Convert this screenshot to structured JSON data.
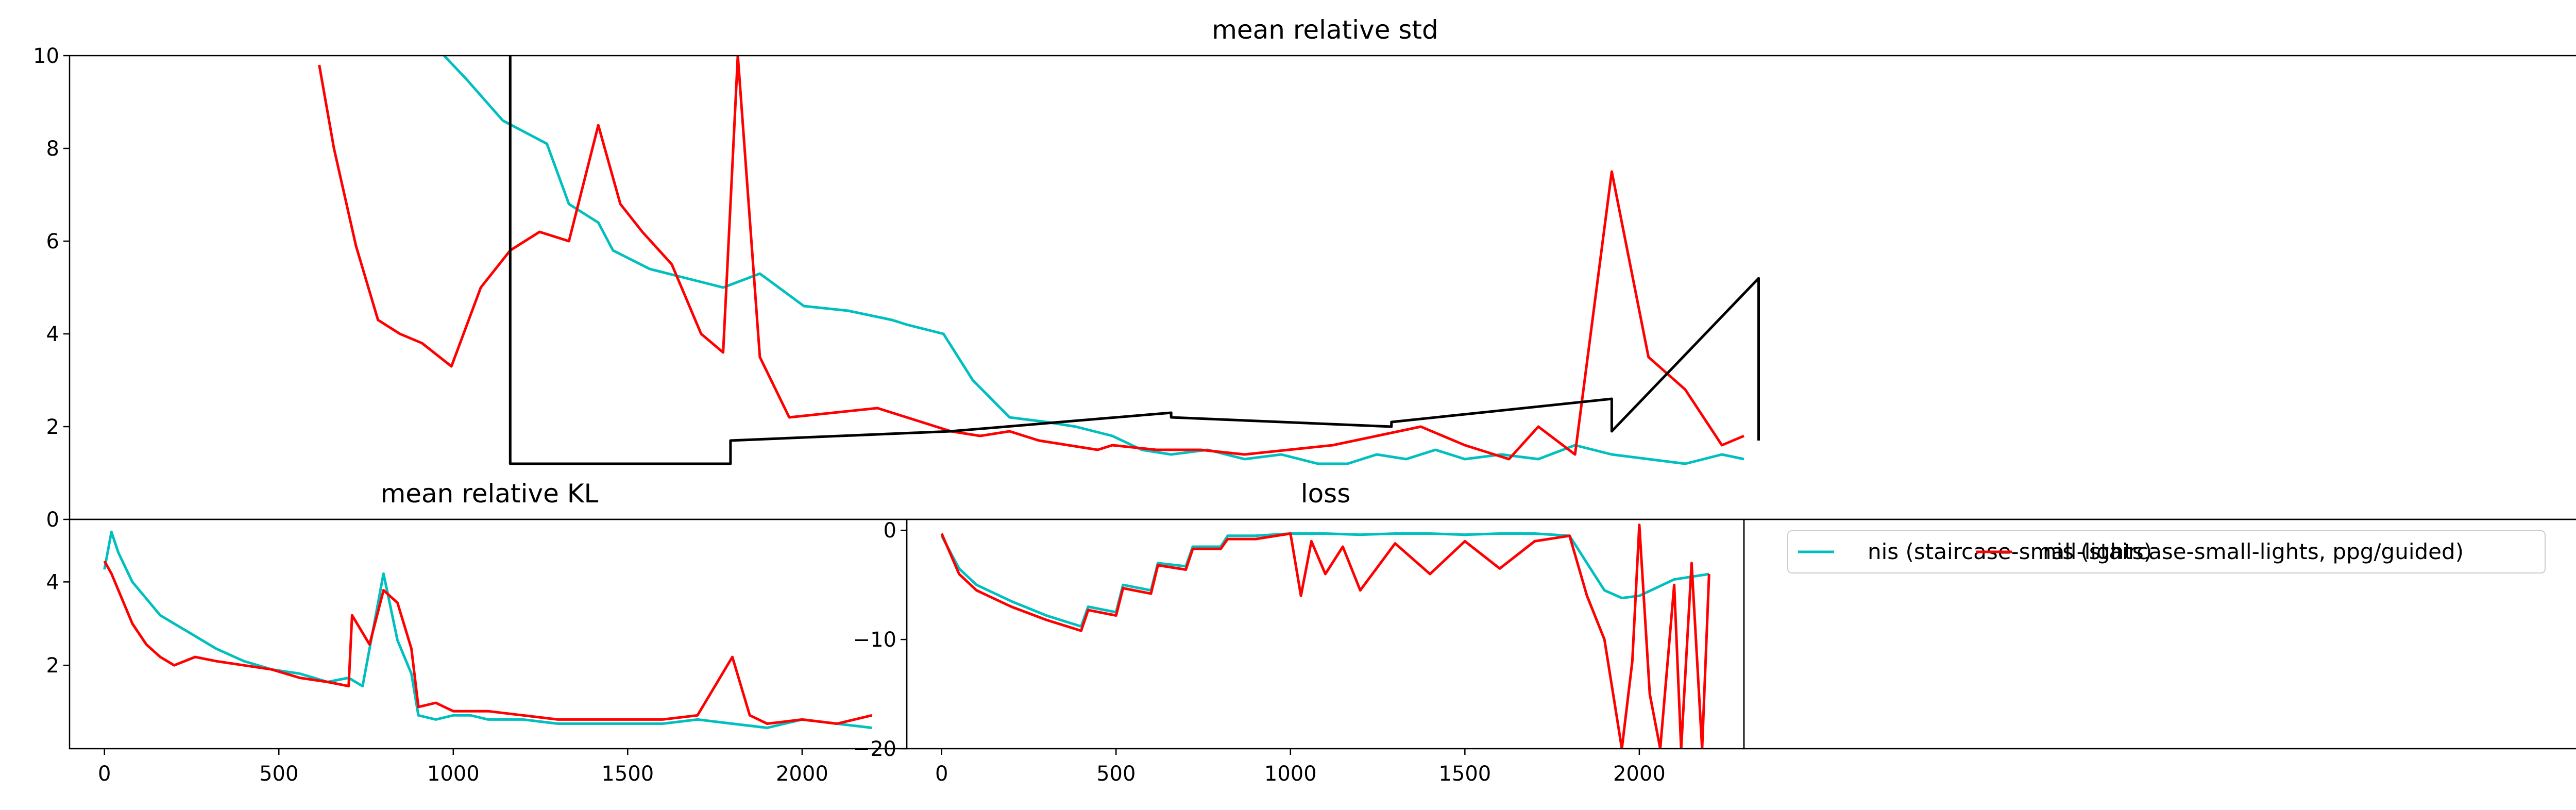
{
  "chart_data": [
    {
      "type": "line",
      "title": "mean relative std",
      "xlim": [
        -100,
        3320
      ],
      "ylim": [
        0,
        10
      ],
      "yticks": [
        0,
        2,
        4,
        6,
        8,
        10
      ],
      "xticks": [],
      "grid": false,
      "series": [
        {
          "color": "#00bfbf",
          "x": [
            410,
            440,
            490,
            550,
            580,
            620,
            640,
            690,
            740,
            790,
            840,
            900,
            960,
            1020,
            1040,
            1090,
            1130,
            1180,
            1230,
            1270,
            1320,
            1360,
            1400,
            1450,
            1500,
            1550,
            1600,
            1640,
            1680,
            1720,
            1760,
            1800,
            1850,
            1900,
            1950,
            2000,
            2050,
            2100,
            2150,
            2180
          ],
          "y": [
            10,
            9.5,
            8.6,
            8.1,
            6.8,
            6.4,
            5.8,
            5.4,
            5.2,
            5.0,
            5.3,
            4.6,
            4.5,
            4.3,
            4.2,
            4.0,
            3.0,
            2.2,
            2.1,
            2.0,
            1.8,
            1.5,
            1.4,
            1.5,
            1.3,
            1.4,
            1.2,
            1.2,
            1.4,
            1.3,
            1.5,
            1.3,
            1.4,
            1.3,
            1.6,
            1.4,
            1.3,
            1.2,
            1.4,
            1.3
          ]
        },
        {
          "color": "#ff0000",
          "x": [
            240,
            260,
            290,
            320,
            350,
            380,
            420,
            460,
            500,
            540,
            580,
            620,
            650,
            680,
            720,
            760,
            790,
            810,
            840,
            880,
            940,
            1000,
            1060,
            1100,
            1140,
            1180,
            1220,
            1260,
            1300,
            1320,
            1380,
            1440,
            1500,
            1560,
            1620,
            1680,
            1740,
            1800,
            1860,
            1900,
            1950,
            2000,
            2050,
            2100,
            2150,
            2180
          ],
          "y": [
            9.8,
            8.0,
            5.9,
            4.3,
            4.0,
            3.8,
            3.3,
            5.0,
            5.8,
            6.2,
            6.0,
            8.5,
            6.8,
            6.2,
            5.5,
            4.0,
            3.6,
            10,
            3.5,
            2.2,
            2.3,
            2.4,
            2.1,
            1.9,
            1.8,
            1.9,
            1.7,
            1.6,
            1.5,
            1.6,
            1.5,
            1.5,
            1.4,
            1.5,
            1.6,
            1.8,
            2.0,
            1.6,
            1.3,
            2.0,
            1.4,
            7.5,
            3.5,
            2.8,
            1.6,
            1.8
          ]
        },
        {
          "color": "#000000",
          "x": [
            500,
            500,
            800,
            800,
            1100,
            1100,
            1400,
            1400,
            1700,
            1700,
            2000,
            2000,
            2200,
            2200
          ],
          "y": [
            10,
            1.2,
            1.2,
            1.7,
            1.9,
            1.9,
            2.3,
            2.2,
            2.0,
            2.1,
            2.6,
            1.9,
            5.2,
            1.7
          ]
        }
      ]
    },
    {
      "type": "line",
      "title": "mean relative KL",
      "xlim": [
        -100,
        2300
      ],
      "ylim": [
        0,
        5.5
      ],
      "xticks": [
        0,
        500,
        1000,
        1500,
        2000
      ],
      "yticks": [
        2,
        4
      ],
      "grid": false,
      "series": [
        {
          "color": "#00bfbf",
          "x": [
            0,
            20,
            40,
            80,
            120,
            160,
            200,
            260,
            320,
            400,
            480,
            560,
            640,
            700,
            740,
            800,
            840,
            880,
            900,
            950,
            1000,
            1050,
            1100,
            1200,
            1300,
            1400,
            1500,
            1600,
            1700,
            1800,
            1900,
            2000,
            2100,
            2200
          ],
          "y": [
            4.3,
            5.2,
            4.7,
            4.0,
            3.6,
            3.2,
            3.0,
            2.7,
            2.4,
            2.1,
            1.9,
            1.8,
            1.6,
            1.7,
            1.5,
            4.2,
            2.6,
            1.8,
            0.8,
            0.7,
            0.8,
            0.8,
            0.7,
            0.7,
            0.6,
            0.6,
            0.6,
            0.6,
            0.7,
            0.6,
            0.5,
            0.7,
            0.6,
            0.5
          ]
        },
        {
          "color": "#ff0000",
          "x": [
            0,
            20,
            40,
            80,
            120,
            160,
            200,
            260,
            320,
            400,
            480,
            560,
            640,
            700,
            710,
            760,
            800,
            840,
            880,
            900,
            950,
            1000,
            1050,
            1100,
            1200,
            1300,
            1400,
            1500,
            1600,
            1700,
            1800,
            1850,
            1900,
            2000,
            2100,
            2200
          ],
          "y": [
            4.5,
            4.2,
            3.8,
            3.0,
            2.5,
            2.2,
            2.0,
            2.2,
            2.1,
            2.0,
            1.9,
            1.7,
            1.6,
            1.5,
            3.2,
            2.5,
            3.8,
            3.5,
            2.4,
            1.0,
            1.1,
            0.9,
            0.9,
            0.9,
            0.8,
            0.7,
            0.7,
            0.7,
            0.7,
            0.8,
            2.2,
            0.8,
            0.6,
            0.7,
            0.6,
            0.8
          ]
        }
      ]
    },
    {
      "type": "line",
      "title": "loss",
      "xlim": [
        -100,
        2300
      ],
      "ylim": [
        -20,
        1
      ],
      "xticks": [
        0,
        500,
        1000,
        1500,
        2000
      ],
      "yticks": [
        0,
        -10,
        -20
      ],
      "grid": false,
      "series": [
        {
          "color": "#00bfbf",
          "x": [
            0,
            50,
            100,
            200,
            300,
            400,
            420,
            500,
            520,
            600,
            620,
            700,
            720,
            800,
            820,
            900,
            1000,
            1100,
            1200,
            1300,
            1400,
            1500,
            1600,
            1700,
            1800,
            1850,
            1900,
            1950,
            2000,
            2100,
            2200
          ],
          "y": [
            -0.5,
            -3.5,
            -5.0,
            -6.5,
            -7.8,
            -8.8,
            -7.0,
            -7.5,
            -5.0,
            -5.5,
            -3.0,
            -3.3,
            -1.5,
            -1.5,
            -0.5,
            -0.5,
            -0.3,
            -0.3,
            -0.4,
            -0.3,
            -0.3,
            -0.4,
            -0.3,
            -0.3,
            -0.5,
            -3.0,
            -5.5,
            -6.2,
            -6.0,
            -4.5,
            -4.0
          ]
        },
        {
          "color": "#ff0000",
          "x": [
            0,
            50,
            100,
            200,
            300,
            400,
            420,
            500,
            520,
            600,
            620,
            700,
            720,
            800,
            820,
            900,
            1000,
            1030,
            1060,
            1100,
            1150,
            1200,
            1300,
            1400,
            1500,
            1600,
            1700,
            1800,
            1850,
            1900,
            1930,
            1950,
            1980,
            2000,
            2030,
            2060,
            2100,
            2120,
            2150,
            2180,
            2200
          ],
          "y": [
            -0.3,
            -4.0,
            -5.5,
            -7.0,
            -8.2,
            -9.2,
            -7.3,
            -7.8,
            -5.3,
            -5.8,
            -3.2,
            -3.6,
            -1.7,
            -1.7,
            -0.8,
            -0.8,
            -0.3,
            -6.0,
            -1.0,
            -4.0,
            -1.5,
            -5.5,
            -1.2,
            -4.0,
            -1.0,
            -3.5,
            -1.0,
            -0.5,
            -6.0,
            -10.0,
            -16.0,
            -20.0,
            -12.0,
            0.5,
            -15.0,
            -20.0,
            -5.0,
            -20.0,
            -3.0,
            -20.0,
            -4.0
          ]
        }
      ]
    }
  ],
  "legend": {
    "placement": "top-left",
    "items": [
      {
        "label": "nis (staircase-small-lights)",
        "color": "#00bfbf"
      },
      {
        "label": "nis (staircase-small-lights, ppg/guided)",
        "color": "#ff0000"
      }
    ]
  }
}
